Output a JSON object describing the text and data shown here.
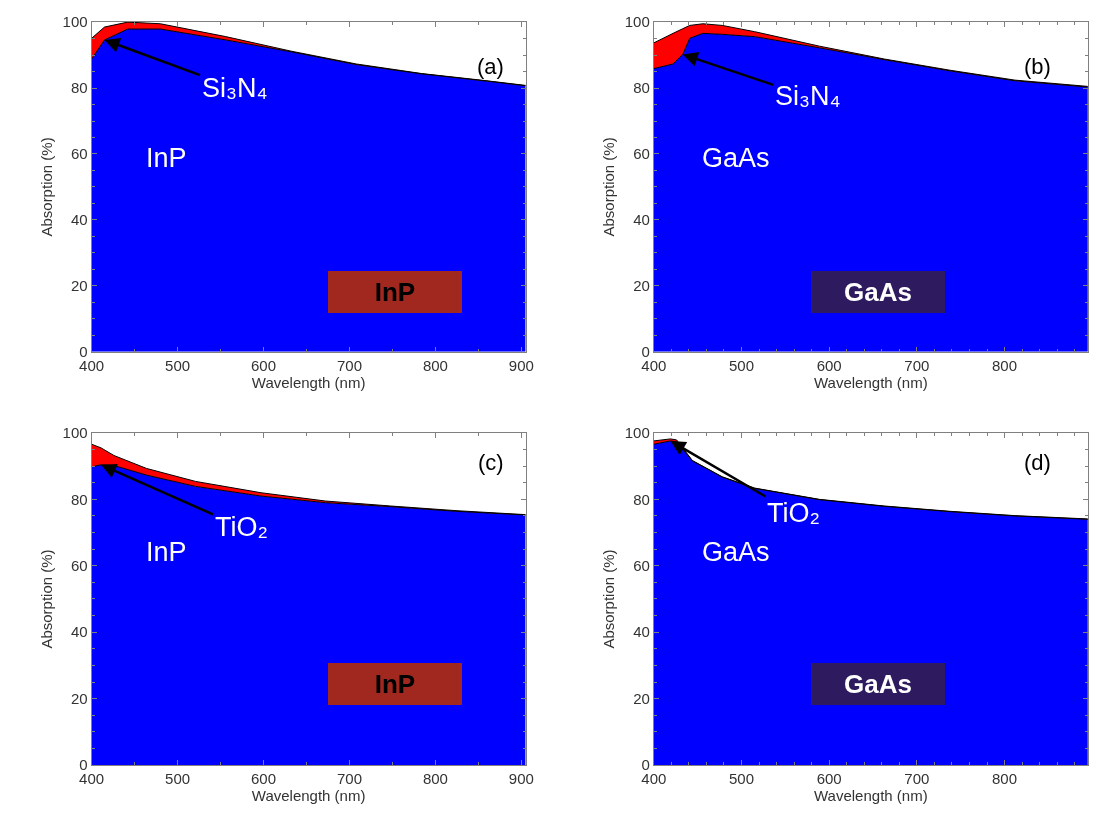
{
  "chart_data": [
    {
      "type": "area",
      "stacked": true,
      "xlabel": "Wavelength (nm)",
      "ylabel": "Absorption (%)",
      "x": [
        400,
        415,
        442,
        480,
        556,
        632,
        708,
        784,
        860,
        905
      ],
      "series": [
        {
          "color": "#0000ff",
          "values": [
            88.8,
            94.6,
            97.9,
            97.9,
            94.6,
            91.0,
            87.1,
            84.3,
            82.1,
            80.7
          ]
        },
        {
          "color": "#ff0000",
          "values": [
            6.3,
            3.9,
            2.1,
            1.6,
            1.0,
            0.2,
            0.2,
            0.1,
            0.1,
            0.1
          ]
        }
      ],
      "xlim": [
        400,
        905
      ],
      "ylim": [
        0,
        100
      ],
      "xticks": [
        400,
        500,
        600,
        700,
        800,
        900
      ],
      "yticks": [
        0,
        20,
        40,
        60,
        80,
        100
      ],
      "annotations": [
        "(a)",
        {
          "text": "Si₃N₄",
          "x": 415,
          "y": 94.6
        },
        "InP",
        "InP"
      ]
    },
    {
      "type": "area",
      "stacked": true,
      "xlabel": "Wavelength (nm)",
      "ylabel": "Absorption (%)",
      "x": [
        400,
        422,
        433,
        441,
        456,
        478,
        515,
        589,
        663,
        738,
        812,
        895
      ],
      "series": [
        {
          "color": "#0000ff",
          "values": [
            85.9,
            87.3,
            90.2,
            95.1,
            96.6,
            96.3,
            95.6,
            92.2,
            88.6,
            85.2,
            82.2,
            80.3
          ]
        },
        {
          "color": "#ff0000",
          "values": [
            7.8,
            9.3,
            7.8,
            3.9,
            2.9,
            2.7,
            1.5,
            0.5,
            0.2,
            0.2,
            0.2,
            0.2
          ]
        }
      ],
      "xlim": [
        400,
        895
      ],
      "ylim": [
        0,
        100
      ],
      "xticks": [
        400,
        500,
        600,
        700,
        800
      ],
      "yticks": [
        0,
        20,
        40,
        60,
        80,
        100
      ],
      "annotations": [
        "(b)",
        {
          "text": "Si₃N₄",
          "x": 433,
          "y": 90.2
        },
        "GaAs",
        "GaAs"
      ]
    },
    {
      "type": "area",
      "stacked": true,
      "xlabel": "Wavelength (nm)",
      "ylabel": "Absorption (%)",
      "x": [
        400,
        411,
        426,
        464,
        521,
        597,
        672,
        748,
        824,
        905
      ],
      "series": [
        {
          "color": "#0000ff",
          "values": [
            89.8,
            90.4,
            90.2,
            87.3,
            83.9,
            81.0,
            79.0,
            77.8,
            76.4,
            75.3
          ]
        },
        {
          "color": "#ff0000",
          "values": [
            6.8,
            5.1,
            3.0,
            2.0,
            1.5,
            1.0,
            0.5,
            0.2,
            0.2,
            0.1
          ]
        }
      ],
      "xlim": [
        400,
        905
      ],
      "ylim": [
        0,
        100
      ],
      "xticks": [
        400,
        500,
        600,
        700,
        800,
        900
      ],
      "yticks": [
        0,
        20,
        40,
        60,
        80,
        100
      ],
      "annotations": [
        "(c)",
        {
          "text": "TiO₂",
          "x": 411,
          "y": 90.4
        },
        "InP",
        "InP"
      ]
    },
    {
      "type": "area",
      "stacked": true,
      "xlabel": "Wavelength (nm)",
      "ylabel": "Absorption (%)",
      "x": [
        400,
        419,
        426,
        444,
        478,
        515,
        589,
        663,
        738,
        812,
        895
      ],
      "series": [
        {
          "color": "#0000ff",
          "values": [
            96.6,
            97.6,
            97.3,
            91.6,
            86.7,
            83.3,
            79.9,
            77.9,
            76.3,
            75.0,
            74.0
          ]
        },
        {
          "color": "#ff0000",
          "values": [
            1.0,
            0.6,
            0.6,
            0.1,
            0.1,
            0.1,
            0.1,
            0.1,
            0.1,
            0.1,
            0.1
          ]
        }
      ],
      "xlim": [
        400,
        895
      ],
      "ylim": [
        0,
        100
      ],
      "xticks": [
        400,
        500,
        600,
        700,
        800
      ],
      "yticks": [
        0,
        20,
        40,
        60,
        80,
        100
      ],
      "annotations": [
        "(d)",
        {
          "text": "TiO₂",
          "x": 419,
          "y": 97.6
        },
        "GaAs",
        "GaAs"
      ]
    }
  ]
}
